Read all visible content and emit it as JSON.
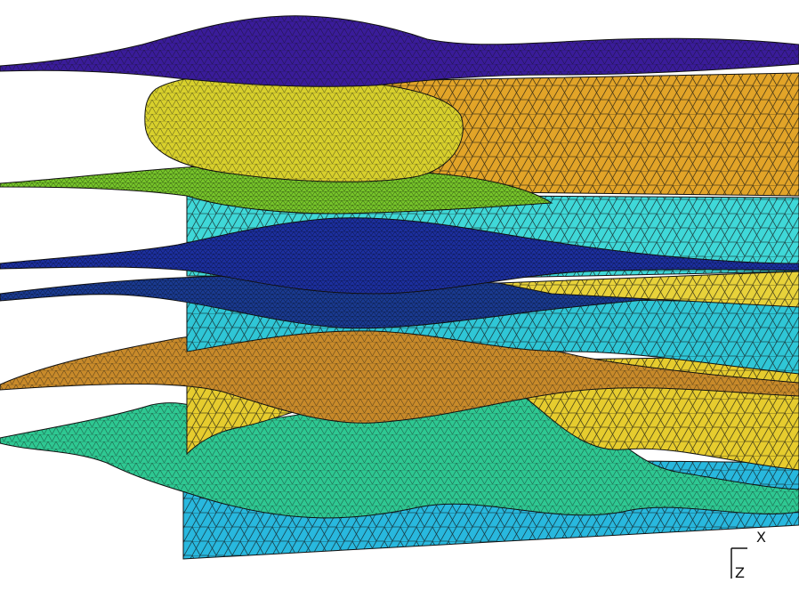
{
  "scene": {
    "background_color": "#ffffff",
    "edge_color": "#111111",
    "layers": [
      {
        "name": "top-dome-surface",
        "color": "#3a1c9a"
      },
      {
        "name": "upper-gold-block",
        "color": "#e2a428"
      },
      {
        "name": "ellipsoid-body",
        "color": "#d8d02c"
      },
      {
        "name": "green-horizon",
        "color": "#76c42a"
      },
      {
        "name": "cyan-block-upper",
        "color": "#3fd8d8"
      },
      {
        "name": "blue-lens-surface",
        "color": "#1c2f9e"
      },
      {
        "name": "yellow-wedge",
        "color": "#e8d23a"
      },
      {
        "name": "navy-horizon",
        "color": "#1a3a90"
      },
      {
        "name": "cyan-block-middle",
        "color": "#2fc6d6"
      },
      {
        "name": "orange-lens-surface",
        "color": "#c88a2a"
      },
      {
        "name": "yellow-block-lower",
        "color": "#e6cc2e"
      },
      {
        "name": "green-bottom-surface",
        "color": "#2ec892"
      },
      {
        "name": "cyan-block-lower",
        "color": "#28b8de"
      }
    ]
  },
  "axes": {
    "x_label": "X",
    "z_label": "Z"
  }
}
